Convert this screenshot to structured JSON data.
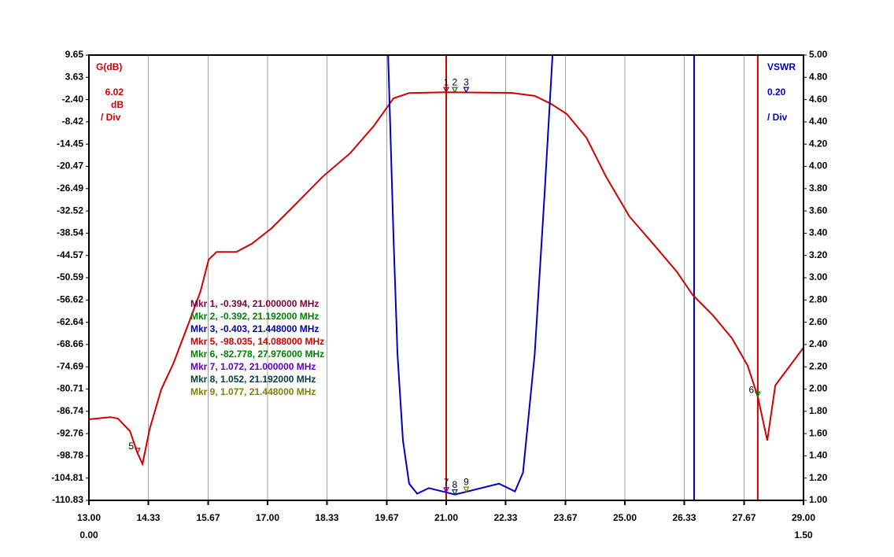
{
  "chart_data": {
    "type": "line",
    "left_axis_label": "G(dB)",
    "left_scale": "6.02",
    "left_unit": "dB",
    "left_div": "/ Div",
    "right_axis_label": "VSWR",
    "right_scale": "0.20",
    "right_div": "/ Div",
    "xlim": [
      13,
      29
    ],
    "xticks": [
      {
        "value": 13,
        "label": "13.00"
      },
      {
        "value": 14.33,
        "label": "14.33"
      },
      {
        "value": 15.67,
        "label": "15.67"
      },
      {
        "value": 17,
        "label": "17.00"
      },
      {
        "value": 18.33,
        "label": "18.33"
      },
      {
        "value": 19.67,
        "label": "19.67"
      },
      {
        "value": 21,
        "label": "21.00"
      },
      {
        "value": 22.33,
        "label": "22.33"
      },
      {
        "value": 23.67,
        "label": "23.67"
      },
      {
        "value": 25,
        "label": "25.00"
      },
      {
        "value": 26.33,
        "label": "26.33"
      },
      {
        "value": 27.67,
        "label": "27.67"
      },
      {
        "value": 29,
        "label": "29.00"
      }
    ],
    "x2lim": [
      0,
      1.5
    ],
    "x2ticks": [
      {
        "value": 0,
        "label": "0.00"
      },
      {
        "value": 1.5,
        "label": "1.50"
      }
    ],
    "ylim": [
      -110.83,
      9.65
    ],
    "yticks": [
      9.65,
      3.63,
      {
        "value": -2.4,
        "label": "-2.40"
      },
      -8.42,
      -14.45,
      -20.47,
      -26.49,
      -32.52,
      -38.54,
      -44.57,
      -50.59,
      -56.62,
      -62.64,
      -68.66,
      -74.69,
      -80.71,
      -86.74,
      -92.76,
      -98.78,
      -104.81,
      -110.83
    ],
    "y2lim": [
      1,
      5
    ],
    "y2ticks": [
      {
        "value": 5,
        "label": "5.00"
      },
      {
        "value": 4.8,
        "label": "4.80"
      },
      {
        "value": 4.6,
        "label": "4.60"
      },
      {
        "value": 4.4,
        "label": "4.40"
      },
      {
        "value": 4.2,
        "label": "4.20"
      },
      {
        "value": 4,
        "label": "4.00"
      },
      {
        "value": 3.8,
        "label": "3.80"
      },
      {
        "value": 3.6,
        "label": "3.60"
      },
      {
        "value": 3.4,
        "label": "3.40"
      },
      {
        "value": 3.2,
        "label": "3.20"
      },
      {
        "value": 3,
        "label": "3.00"
      },
      {
        "value": 2.8,
        "label": "2.80"
      },
      {
        "value": 2.6,
        "label": "2.60"
      },
      {
        "value": 2.4,
        "label": "2.40"
      },
      {
        "value": 2.2,
        "label": "2.20"
      },
      {
        "value": 2,
        "label": "2.00"
      },
      {
        "value": 1.8,
        "label": "1.80"
      },
      {
        "value": 1.6,
        "label": "1.60"
      },
      {
        "value": 1.4,
        "label": "1.40"
      },
      {
        "value": 1.2,
        "label": "1.20"
      },
      {
        "value": 1,
        "label": "1.00"
      }
    ],
    "grid": "vertical",
    "series": [
      {
        "color": "#d00000",
        "axis": "y",
        "x": [
          13,
          13.48,
          13.65,
          13.92,
          14.088,
          14.2,
          14.36,
          14.62,
          14.89,
          15.24,
          15.5,
          15.68,
          15.86,
          16.3,
          16.65,
          17.09,
          17.62,
          18.23,
          18.85,
          19.38,
          19.82,
          20.17,
          21,
          22.46,
          22.98,
          23.34,
          23.7,
          24.14,
          24.58,
          25.1,
          25.63,
          26.16,
          26.52,
          26.96,
          27.4,
          27.75,
          27.976,
          28.19,
          28.37,
          28.63,
          29
        ],
        "values": [
          -88.9,
          -88.3,
          -88.7,
          -92.1,
          -98.035,
          -101,
          -91.5,
          -80.8,
          -73.8,
          -62.7,
          -54.2,
          -45.7,
          -43.6,
          -43.6,
          -41.4,
          -37.2,
          -30.8,
          -23.3,
          -16.9,
          -9.5,
          -2.05,
          -0.6,
          -0.394,
          -0.57,
          -1.4,
          -3.5,
          -6.3,
          -12.7,
          -23.3,
          -34,
          -41.4,
          -48.9,
          -55.3,
          -60.6,
          -67,
          -74.4,
          -82.778,
          -94.6,
          -79.7,
          -75.5,
          -69.5
        ]
      },
      {
        "color": "#0000c0",
        "axis": "y2",
        "x": [
          19.7,
          19.82,
          19.91,
          20.03,
          20.17,
          20.35,
          20.61,
          21,
          21.192,
          21.448,
          22.18,
          22.54,
          22.72,
          22.98,
          23.2,
          23.38
        ],
        "values": [
          5,
          3.37,
          2.31,
          1.54,
          1.15,
          1.06,
          1.11,
          1.072,
          1.052,
          1.077,
          1.15,
          1.08,
          1.25,
          2.31,
          3.73,
          5
        ]
      }
    ],
    "cursors": [
      {
        "x": 21,
        "color": "#d00000"
      },
      {
        "x": 26.55,
        "color": "#0000c0"
      },
      {
        "x": 27.976,
        "color": "#d00000"
      }
    ],
    "markers": [
      {
        "label": "1",
        "x": 21,
        "y": -0.394,
        "axis": "y",
        "color": "#800040"
      },
      {
        "label": "2",
        "x": 21.192,
        "y": -0.392,
        "axis": "y",
        "color": "#008000"
      },
      {
        "label": "3",
        "x": 21.448,
        "y": -0.403,
        "axis": "y",
        "color": "#0000c0"
      },
      {
        "label": "5",
        "x": 14.088,
        "y": -98.035,
        "axis": "y",
        "color": "#d00000"
      },
      {
        "label": "6",
        "x": 27.976,
        "y": -82.778,
        "axis": "y",
        "color": "#008000"
      },
      {
        "label": "7",
        "x": 21,
        "y": 1.072,
        "axis": "y2",
        "color": "#6000c0"
      },
      {
        "label": "8",
        "x": 21.192,
        "y": 1.052,
        "axis": "y2",
        "color": "#004040"
      },
      {
        "label": "9",
        "x": 21.448,
        "y": 1.077,
        "axis": "y2",
        "color": "#808000"
      }
    ],
    "marker_readout": [
      {
        "text": "Mkr 1, -0.394, 21.000000 MHz",
        "color": "#800040"
      },
      {
        "text": "Mkr 2, -0.392, 21.192000 MHz",
        "color": "#008000"
      },
      {
        "text": "Mkr 3, -0.403, 21.448000 MHz",
        "color": "#0000a0"
      },
      {
        "text": "Mkr 5, -98.035, 14.088000 MHz",
        "color": "#d00000"
      },
      {
        "text": "Mkr 6, -82.778, 27.976000 MHz",
        "color": "#008000"
      },
      {
        "text": "Mkr 7, 1.072, 21.000000 MHz",
        "color": "#6000c0"
      },
      {
        "text": "Mkr 8, 1.052, 21.192000 MHz",
        "color": "#004040"
      },
      {
        "text": "Mkr 9, 1.077, 21.448000 MHz",
        "color": "#808000"
      }
    ]
  }
}
